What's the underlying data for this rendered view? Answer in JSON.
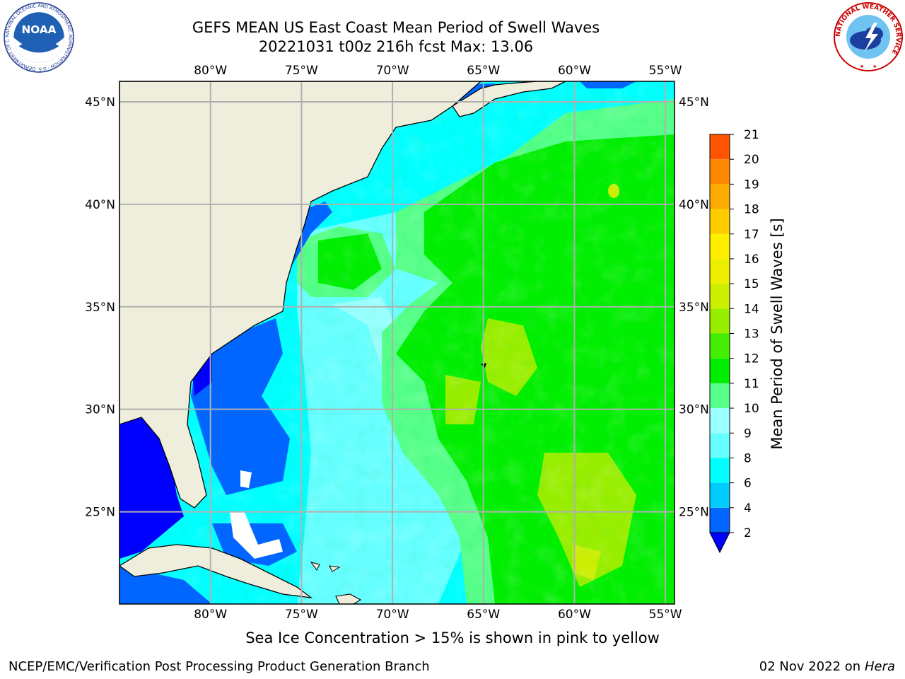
{
  "header": {
    "title": "GEFS MEAN US East Coast Mean Period of Swell Waves",
    "subtitle": "20221031 t00z 216h fcst   Max: 13.06"
  },
  "logos": {
    "left": "noaa-logo",
    "left_text": "NOAA",
    "left_ring_text": "NATIONAL OCEANIC AND ATMOSPHERIC ADMINISTRATION · U.S. DEPARTMENT OF COMMERCE",
    "right": "nws-logo",
    "right_ring_text": "NATIONAL WEATHER SERVICE"
  },
  "map": {
    "lon_labels": [
      "80°W",
      "75°W",
      "70°W",
      "65°W",
      "60°W",
      "55°W"
    ],
    "lon_values": [
      -80,
      -75,
      -70,
      -65,
      -60,
      -55
    ],
    "lat_labels": [
      "45°N",
      "40°N",
      "35°N",
      "30°N",
      "25°N"
    ],
    "lat_values": [
      45,
      40,
      35,
      30,
      25
    ],
    "lon_range": [
      -85,
      -54.5
    ],
    "lat_range": [
      20.5,
      46
    ],
    "land_color": "#efeedc",
    "grid_color": "#b0b0b0"
  },
  "colorbar": {
    "label": "Mean Period of Swell Waves [s]",
    "ticks": [
      "2",
      "4",
      "6",
      "8",
      "9",
      "10",
      "11",
      "12",
      "13",
      "14",
      "15",
      "16",
      "17",
      "18",
      "19",
      "20",
      "21"
    ],
    "colors": [
      "#0066ff",
      "#00ccff",
      "#00ffff",
      "#66ffff",
      "#99ffff",
      "#55ff88",
      "#00ee00",
      "#44ee00",
      "#99ee00",
      "#ccee00",
      "#eeee00",
      "#ffee00",
      "#ffcc00",
      "#ffaa00",
      "#ff8800",
      "#ff5500",
      "#ff2200",
      "#ff0000"
    ],
    "under_color": "#0000ff"
  },
  "note": "Sea Ice Concentration > 15% is shown in pink to yellow",
  "footer": {
    "left": "NCEP/EMC/Verification Post Processing Product Generation Branch",
    "date": "02 Nov 2022 on",
    "machine": "Hera"
  }
}
